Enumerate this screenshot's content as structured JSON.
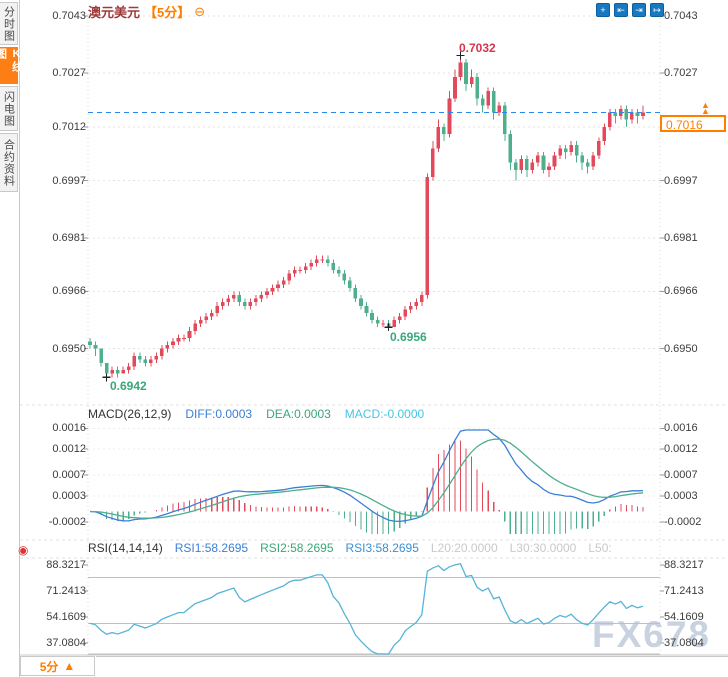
{
  "header": {
    "title": "澳元美元",
    "timeframe": "【5分】"
  },
  "sidebar": {
    "items": [
      {
        "label": "分时图",
        "active": false
      },
      {
        "label": "K线图",
        "active": true
      },
      {
        "label": "闪电图",
        "active": false
      },
      {
        "label": "合约资料",
        "active": false
      }
    ]
  },
  "icons": {
    "collapse": "⊖",
    "toolbar": [
      {
        "name": "pan-crosshair",
        "glyph": "+"
      },
      {
        "name": "scale-compress",
        "glyph": "⇤"
      },
      {
        "name": "scale-expand",
        "glyph": "⇥"
      },
      {
        "name": "jump-to-latest",
        "glyph": "↦"
      }
    ],
    "price_arrow": "▲",
    "footer_arrow": "▲",
    "indicator_settings": "◉"
  },
  "current_price": {
    "label": "0.7016",
    "value": 0.7016
  },
  "annotations": {
    "high": {
      "label": "0.7032",
      "price": 0.7032
    },
    "low1": {
      "label": "0.6942",
      "price": 0.6942
    },
    "low2": {
      "label": "0.6956",
      "price": 0.6956
    }
  },
  "macd_header": {
    "name": "MACD(26,12,9)",
    "diff": "DIFF:0.0003",
    "dea": "DEA:0.0003",
    "macd": "MACD:-0.0000"
  },
  "rsi_header": {
    "name": "RSI(14,14,14)",
    "rsi1": "RSI1:58.2695",
    "rsi2": "RSI2:58.2695",
    "rsi3": "RSI3:58.2695",
    "l20": "L20:20.0000",
    "l30": "L30:30.0000",
    "l50": "L50:"
  },
  "footer": {
    "timeframe": "5分"
  },
  "watermark": "FX678",
  "colors": {
    "up": "#e2495b",
    "down": "#4daf8c",
    "diff_line": "#3b7fd4",
    "dea_line": "#4daf8c",
    "rsi_line": "#56b4d8",
    "price_line": "#2b87e8",
    "accent": "#ff7e00",
    "grid": "#e3e3e3",
    "level_line": "#c0c0c0",
    "tick": "#999999"
  },
  "chart_data": {
    "type": "candlestick",
    "symbol": "澳元美元",
    "interval": "5分",
    "price_axis_values": [
      0.7043,
      0.7027,
      0.7012,
      0.6997,
      0.6981,
      0.6966,
      0.695
    ],
    "macd_axis_values": [
      0.0016,
      0.0012,
      0.0007,
      0.0003,
      -0.0002
    ],
    "rsi_axis_values": [
      88.3217,
      71.2413,
      54.1609,
      37.0804
    ],
    "rsi_levels": [
      80,
      50,
      30
    ],
    "current_price": 0.7016,
    "high_marker": {
      "index": 67,
      "price": 0.7032
    },
    "low_markers": [
      {
        "index": 3,
        "price": 0.6942
      },
      {
        "index": 54,
        "price": 0.6956
      }
    ],
    "candles": [
      [
        0.6952,
        0.6953,
        0.695,
        0.6951
      ],
      [
        0.6951,
        0.6952,
        0.6948,
        0.695
      ],
      [
        0.695,
        0.695,
        0.6945,
        0.6946
      ],
      [
        0.6946,
        0.6946,
        0.6942,
        0.6943
      ],
      [
        0.6943,
        0.6945,
        0.6942,
        0.6944
      ],
      [
        0.6944,
        0.6945,
        0.6942,
        0.6943
      ],
      [
        0.6943,
        0.6945,
        0.6943,
        0.6944
      ],
      [
        0.6944,
        0.6946,
        0.6943,
        0.6945
      ],
      [
        0.6945,
        0.6949,
        0.6944,
        0.6948
      ],
      [
        0.6948,
        0.6949,
        0.6946,
        0.6947
      ],
      [
        0.6947,
        0.6948,
        0.6945,
        0.6946
      ],
      [
        0.6946,
        0.6948,
        0.6945,
        0.6947
      ],
      [
        0.6947,
        0.6949,
        0.6946,
        0.6948
      ],
      [
        0.6948,
        0.6951,
        0.6947,
        0.695
      ],
      [
        0.695,
        0.6952,
        0.6949,
        0.6951
      ],
      [
        0.6951,
        0.6953,
        0.695,
        0.6952
      ],
      [
        0.6952,
        0.6954,
        0.6951,
        0.6953
      ],
      [
        0.6953,
        0.6954,
        0.6952,
        0.6953
      ],
      [
        0.6953,
        0.6956,
        0.6952,
        0.6955
      ],
      [
        0.6955,
        0.6958,
        0.6954,
        0.6957
      ],
      [
        0.6957,
        0.6959,
        0.6956,
        0.6958
      ],
      [
        0.6958,
        0.696,
        0.6957,
        0.6959
      ],
      [
        0.6959,
        0.6961,
        0.6958,
        0.696
      ],
      [
        0.696,
        0.6963,
        0.6959,
        0.6962
      ],
      [
        0.6962,
        0.6964,
        0.6961,
        0.6963
      ],
      [
        0.6963,
        0.6965,
        0.6962,
        0.6964
      ],
      [
        0.6964,
        0.6966,
        0.6963,
        0.6965
      ],
      [
        0.6965,
        0.6966,
        0.6962,
        0.6963
      ],
      [
        0.6963,
        0.6964,
        0.6961,
        0.6962
      ],
      [
        0.6962,
        0.6964,
        0.6961,
        0.6963
      ],
      [
        0.6963,
        0.6965,
        0.6962,
        0.6964
      ],
      [
        0.6964,
        0.6966,
        0.6963,
        0.6965
      ],
      [
        0.6965,
        0.6967,
        0.6964,
        0.6966
      ],
      [
        0.6966,
        0.6968,
        0.6965,
        0.6967
      ],
      [
        0.6967,
        0.6969,
        0.6966,
        0.6968
      ],
      [
        0.6968,
        0.697,
        0.6967,
        0.6969
      ],
      [
        0.6969,
        0.6972,
        0.6968,
        0.6971
      ],
      [
        0.6971,
        0.6973,
        0.697,
        0.6972
      ],
      [
        0.6972,
        0.6973,
        0.6971,
        0.6972
      ],
      [
        0.6972,
        0.6974,
        0.6971,
        0.6973
      ],
      [
        0.6973,
        0.6975,
        0.6972,
        0.6974
      ],
      [
        0.6974,
        0.6976,
        0.6973,
        0.6975
      ],
      [
        0.6975,
        0.6976,
        0.6974,
        0.6975
      ],
      [
        0.6975,
        0.6976,
        0.6973,
        0.6974
      ],
      [
        0.6974,
        0.6975,
        0.6971,
        0.6972
      ],
      [
        0.6972,
        0.6973,
        0.697,
        0.6971
      ],
      [
        0.6971,
        0.6972,
        0.6968,
        0.6969
      ],
      [
        0.6969,
        0.697,
        0.6966,
        0.6967
      ],
      [
        0.6967,
        0.6968,
        0.6963,
        0.6964
      ],
      [
        0.6964,
        0.6965,
        0.6961,
        0.6962
      ],
      [
        0.6962,
        0.6963,
        0.6959,
        0.696
      ],
      [
        0.696,
        0.6961,
        0.6957,
        0.6958
      ],
      [
        0.6958,
        0.6959,
        0.6956,
        0.6957
      ],
      [
        0.6957,
        0.6958,
        0.6956,
        0.6957
      ],
      [
        0.6957,
        0.6958,
        0.6956,
        0.6956
      ],
      [
        0.6956,
        0.6959,
        0.6956,
        0.6958
      ],
      [
        0.6958,
        0.696,
        0.6957,
        0.6959
      ],
      [
        0.6959,
        0.6962,
        0.6958,
        0.6961
      ],
      [
        0.6961,
        0.6963,
        0.696,
        0.6962
      ],
      [
        0.6962,
        0.6964,
        0.6961,
        0.6963
      ],
      [
        0.6963,
        0.6966,
        0.6962,
        0.6965
      ],
      [
        0.6965,
        0.6999,
        0.6964,
        0.6998
      ],
      [
        0.6998,
        0.7008,
        0.6997,
        0.7006
      ],
      [
        0.7006,
        0.7014,
        0.7005,
        0.7012
      ],
      [
        0.7012,
        0.7013,
        0.7008,
        0.701
      ],
      [
        0.701,
        0.7022,
        0.7009,
        0.702
      ],
      [
        0.702,
        0.7028,
        0.7019,
        0.7026
      ],
      [
        0.7026,
        0.7032,
        0.7025,
        0.703
      ],
      [
        0.703,
        0.7031,
        0.7022,
        0.7024
      ],
      [
        0.7024,
        0.7028,
        0.7023,
        0.7026
      ],
      [
        0.7026,
        0.7027,
        0.7018,
        0.702
      ],
      [
        0.702,
        0.7021,
        0.7016,
        0.7018
      ],
      [
        0.7018,
        0.7023,
        0.7017,
        0.7022
      ],
      [
        0.7022,
        0.7023,
        0.7014,
        0.7016
      ],
      [
        0.7016,
        0.7019,
        0.7015,
        0.7018
      ],
      [
        0.7018,
        0.7019,
        0.7008,
        0.701
      ],
      [
        0.701,
        0.7011,
        0.7,
        0.7002
      ],
      [
        0.7002,
        0.7003,
        0.6997,
        0.7
      ],
      [
        0.7,
        0.7004,
        0.6999,
        0.7003
      ],
      [
        0.7003,
        0.7004,
        0.6998,
        0.7
      ],
      [
        0.7,
        0.7003,
        0.6999,
        0.7002
      ],
      [
        0.7002,
        0.7005,
        0.7001,
        0.7004
      ],
      [
        0.7004,
        0.7005,
        0.6999,
        0.7
      ],
      [
        0.7,
        0.7002,
        0.6998,
        0.7001
      ],
      [
        0.7001,
        0.7005,
        0.7,
        0.7004
      ],
      [
        0.7004,
        0.7007,
        0.7003,
        0.7006
      ],
      [
        0.7006,
        0.7007,
        0.7003,
        0.7005
      ],
      [
        0.7005,
        0.7008,
        0.7004,
        0.7007
      ],
      [
        0.7007,
        0.7008,
        0.7002,
        0.7004
      ],
      [
        0.7004,
        0.7005,
        0.7,
        0.7002
      ],
      [
        0.7002,
        0.7003,
        0.6999,
        0.7001
      ],
      [
        0.7001,
        0.7005,
        0.7,
        0.7004
      ],
      [
        0.7004,
        0.7009,
        0.7003,
        0.7008
      ],
      [
        0.7008,
        0.7013,
        0.7007,
        0.7012
      ],
      [
        0.7012,
        0.7017,
        0.7011,
        0.7016
      ],
      [
        0.7016,
        0.7017,
        0.7013,
        0.7015
      ],
      [
        0.7015,
        0.7018,
        0.7014,
        0.7017
      ],
      [
        0.7017,
        0.7018,
        0.7012,
        0.7014
      ],
      [
        0.7014,
        0.7017,
        0.7013,
        0.7016
      ],
      [
        0.7016,
        0.7017,
        0.7013,
        0.7015
      ],
      [
        0.7015,
        0.7018,
        0.7014,
        0.7016
      ]
    ]
  }
}
